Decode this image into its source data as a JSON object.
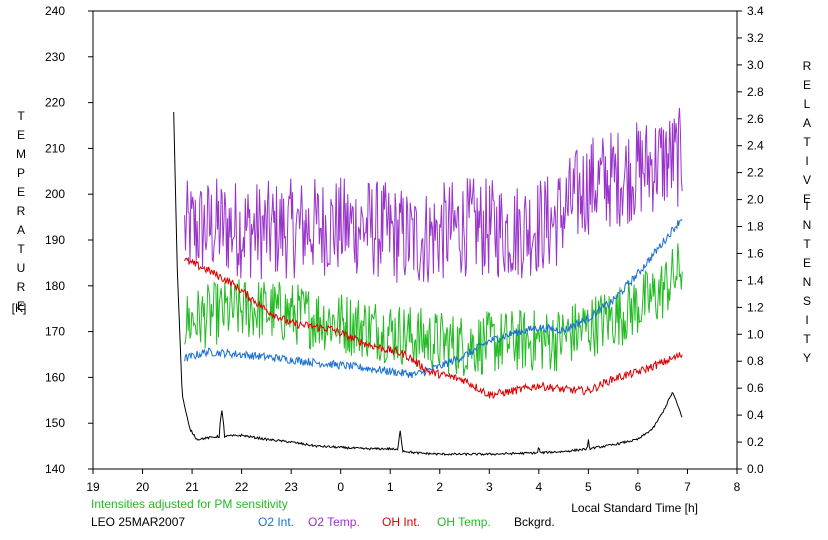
{
  "chart_data": {
    "type": "line",
    "left_axis": {
      "title_letters": [
        "T",
        "E",
        "M",
        "P",
        "E",
        "R",
        "A",
        "T",
        "U",
        "R",
        "E"
      ],
      "unit": "[K]",
      "range": [
        140,
        240
      ],
      "ticks": [
        "140",
        "150",
        "160",
        "170",
        "180",
        "190",
        "200",
        "210",
        "220",
        "230",
        "240"
      ]
    },
    "right_axis": {
      "title_letters_1": [
        "R",
        "E",
        "L",
        "A",
        "T",
        "I",
        "V",
        "E"
      ],
      "title_letters_2": [
        "I",
        "N",
        "T",
        "E",
        "N",
        "S",
        "I",
        "T",
        "Y"
      ],
      "range": [
        0.0,
        3.4
      ],
      "ticks": [
        "0.0",
        "0.2",
        "0.4",
        "0.6",
        "0.8",
        "1.0",
        "1.2",
        "1.4",
        "1.6",
        "1.8",
        "2.0",
        "2.2",
        "2.4",
        "2.6",
        "2.8",
        "3.0",
        "3.2",
        "3.4"
      ]
    },
    "x_axis": {
      "label": "Local Standard Time [h]",
      "range": [
        19,
        32
      ],
      "ticks": [
        "19",
        "20",
        "21",
        "22",
        "23",
        "0",
        "1",
        "2",
        "3",
        "4",
        "5",
        "6",
        "7",
        "8"
      ]
    },
    "note": "Intensities adjusted for PM sensitivity",
    "station_date": "LEO 25MAR2007",
    "legend": [
      "O2 Int.",
      "O2 Temp.",
      "OH Int.",
      "OH Temp.",
      "Bckgrd."
    ],
    "colors": {
      "o2_int": "#1a6fd1",
      "o2_temp": "#9933cc",
      "oh_int": "#dd0000",
      "oh_temp": "#22bb22",
      "background": "#000000",
      "note": "#22bb22"
    },
    "series": [
      {
        "name": "O2 Temp.",
        "axis": "left",
        "x_range": [
          20.85,
          30.9
        ],
        "noise": 11,
        "anchors": [
          [
            20.85,
            192
          ],
          [
            21.5,
            193
          ],
          [
            22.5,
            192
          ],
          [
            23.5,
            193
          ],
          [
            24.5,
            193
          ],
          [
            25.5,
            190
          ],
          [
            26.5,
            193
          ],
          [
            27.5,
            192
          ],
          [
            28.3,
            194
          ],
          [
            29.0,
            202
          ],
          [
            29.7,
            204
          ],
          [
            30.4,
            207
          ],
          [
            30.9,
            208
          ]
        ]
      },
      {
        "name": "OH Temp.",
        "axis": "left",
        "x_range": [
          20.85,
          30.9
        ],
        "noise": 7,
        "anchors": [
          [
            20.85,
            172
          ],
          [
            21.5,
            174
          ],
          [
            22.2,
            175
          ],
          [
            23.0,
            174
          ],
          [
            24.0,
            172
          ],
          [
            25.0,
            170
          ],
          [
            25.8,
            168
          ],
          [
            26.5,
            167
          ],
          [
            27.5,
            168
          ],
          [
            28.3,
            168
          ],
          [
            29.0,
            171
          ],
          [
            29.7,
            174
          ],
          [
            30.4,
            178
          ],
          [
            30.9,
            184
          ]
        ]
      },
      {
        "name": "O2 Int.",
        "axis": "right",
        "x_range": [
          20.85,
          30.9
        ],
        "noise": 0.03,
        "anchors": [
          [
            20.85,
            0.82
          ],
          [
            21.3,
            0.87
          ],
          [
            22.0,
            0.85
          ],
          [
            22.8,
            0.82
          ],
          [
            23.5,
            0.79
          ],
          [
            24.5,
            0.75
          ],
          [
            25.5,
            0.7
          ],
          [
            26.0,
            0.76
          ],
          [
            26.6,
            0.86
          ],
          [
            27.0,
            0.95
          ],
          [
            27.5,
            1.01
          ],
          [
            28.0,
            1.05
          ],
          [
            28.5,
            1.03
          ],
          [
            29.0,
            1.12
          ],
          [
            29.5,
            1.25
          ],
          [
            30.0,
            1.45
          ],
          [
            30.5,
            1.68
          ],
          [
            30.9,
            1.87
          ]
        ]
      },
      {
        "name": "OH Int.",
        "axis": "right",
        "x_range": [
          20.85,
          30.9
        ],
        "noise": 0.03,
        "anchors": [
          [
            20.85,
            1.55
          ],
          [
            21.3,
            1.48
          ],
          [
            21.8,
            1.38
          ],
          [
            22.5,
            1.18
          ],
          [
            23.0,
            1.08
          ],
          [
            23.8,
            1.04
          ],
          [
            24.5,
            0.93
          ],
          [
            25.3,
            0.85
          ],
          [
            25.8,
            0.72
          ],
          [
            26.5,
            0.66
          ],
          [
            27.0,
            0.55
          ],
          [
            27.5,
            0.58
          ],
          [
            28.0,
            0.62
          ],
          [
            28.5,
            0.59
          ],
          [
            29.0,
            0.58
          ],
          [
            29.5,
            0.67
          ],
          [
            30.0,
            0.72
          ],
          [
            30.5,
            0.79
          ],
          [
            30.9,
            0.85
          ]
        ]
      },
      {
        "name": "Bckgrd.",
        "axis": "right",
        "x_range": [
          20.63,
          30.9
        ],
        "noise": 0.008,
        "anchors": [
          [
            20.63,
            2.65
          ],
          [
            20.7,
            1.5
          ],
          [
            20.8,
            0.55
          ],
          [
            20.95,
            0.3
          ],
          [
            21.1,
            0.22
          ],
          [
            21.5,
            0.24
          ],
          [
            22.0,
            0.25
          ],
          [
            22.5,
            0.22
          ],
          [
            23.0,
            0.2
          ],
          [
            23.5,
            0.17
          ],
          [
            24.0,
            0.16
          ],
          [
            24.5,
            0.15
          ],
          [
            25.0,
            0.15
          ],
          [
            25.5,
            0.12
          ],
          [
            26.0,
            0.11
          ],
          [
            27.0,
            0.11
          ],
          [
            28.0,
            0.12
          ],
          [
            28.5,
            0.13
          ],
          [
            29.0,
            0.15
          ],
          [
            29.5,
            0.18
          ],
          [
            30.0,
            0.22
          ],
          [
            30.3,
            0.3
          ],
          [
            30.5,
            0.42
          ],
          [
            30.7,
            0.57
          ],
          [
            30.9,
            0.38
          ]
        ],
        "spikes": [
          [
            21.6,
            0.44
          ],
          [
            24.7,
            0.14
          ],
          [
            25.2,
            0.29
          ],
          [
            28.0,
            0.18
          ],
          [
            29.0,
            0.22
          ]
        ]
      }
    ]
  }
}
